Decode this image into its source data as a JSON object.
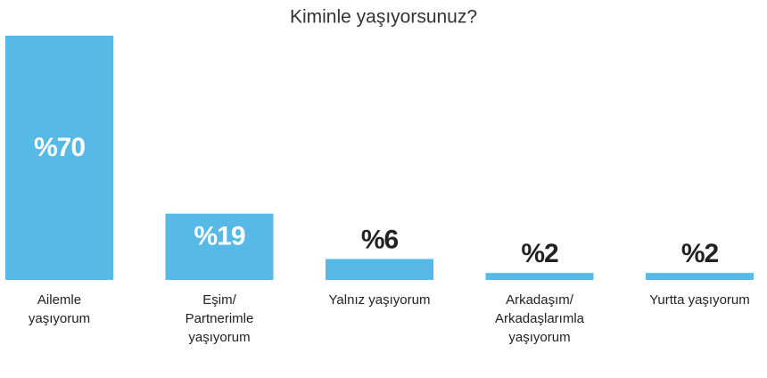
{
  "chart_data": {
    "type": "bar",
    "title": "Kiminle yaşıyorsunuz?",
    "categories": [
      "Ailemle\nyaşıyorum",
      "Eşim/\nPartnerimle\nyaşıyorum",
      "Yalnız yaşıyorum",
      "Arkadaşım/\nArkadaşlarımla\nyaşıyorum",
      "Yurtta yaşıyorum"
    ],
    "values": [
      70,
      19,
      6,
      2,
      2
    ],
    "value_labels": [
      "%70",
      "%19",
      "%6",
      "%2",
      "%2"
    ],
    "color": "#56b9e6"
  }
}
